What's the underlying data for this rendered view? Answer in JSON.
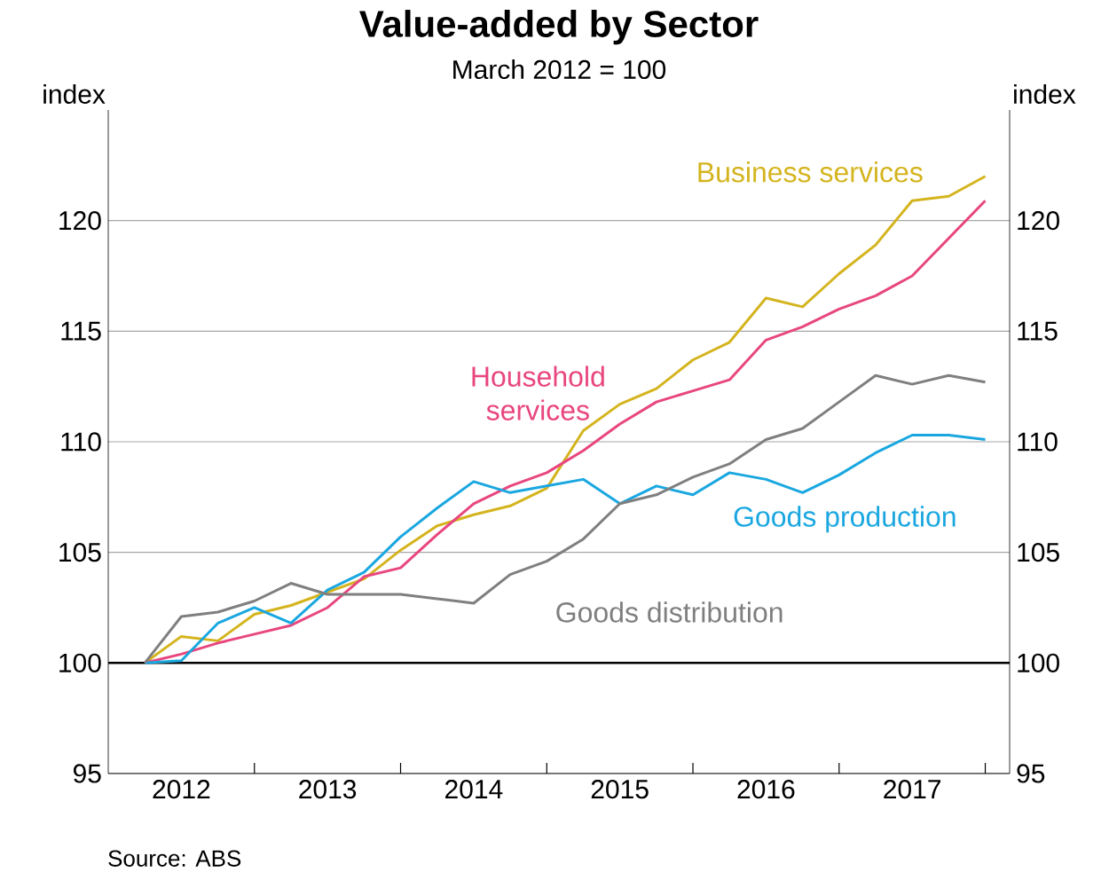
{
  "chart_data": {
    "type": "line",
    "title": "Value-added by Sector",
    "subtitle": "March 2012 = 100",
    "ylabel": "index",
    "y2label": "index",
    "annotations": [
      "Source:   ABS"
    ],
    "x": [
      "2012-03",
      "2012-06",
      "2012-09",
      "2012-12",
      "2013-03",
      "2013-06",
      "2013-09",
      "2013-12",
      "2014-03",
      "2014-06",
      "2014-09",
      "2014-12",
      "2015-03",
      "2015-06",
      "2015-09",
      "2015-12",
      "2016-03",
      "2016-06",
      "2016-09",
      "2016-12",
      "2017-03",
      "2017-06",
      "2017-09",
      "2017-12"
    ],
    "series": [
      {
        "name": "Business services",
        "color": "#d4b41e",
        "values": [
          100,
          101.2,
          101.0,
          102.2,
          102.6,
          103.2,
          103.8,
          105.1,
          106.2,
          106.7,
          107.1,
          107.9,
          110.5,
          111.7,
          112.4,
          113.7,
          114.5,
          116.5,
          116.1,
          117.6,
          118.9,
          120.9,
          121.1,
          122.0
        ]
      },
      {
        "name": "Household services",
        "color": "#e8467f",
        "values": [
          100,
          100.4,
          100.9,
          101.3,
          101.7,
          102.5,
          103.9,
          104.3,
          105.8,
          107.2,
          108.0,
          108.6,
          109.6,
          110.8,
          111.8,
          112.3,
          112.8,
          114.6,
          115.2,
          116.0,
          116.6,
          117.5,
          119.2,
          120.9
        ]
      },
      {
        "name": "Goods production",
        "color": "#1aa7e0",
        "values": [
          100,
          100.1,
          101.8,
          102.5,
          101.8,
          103.3,
          104.1,
          105.7,
          107.0,
          108.2,
          107.7,
          108.0,
          108.3,
          107.2,
          108.0,
          107.6,
          108.6,
          108.3,
          107.7,
          108.5,
          109.5,
          110.3,
          110.3,
          110.1
        ]
      },
      {
        "name": "Goods distribution",
        "color": "#7f7f7f",
        "values": [
          100,
          102.1,
          102.3,
          102.8,
          103.6,
          103.1,
          103.1,
          103.1,
          102.9,
          102.7,
          104.0,
          104.6,
          105.6,
          107.2,
          107.6,
          108.4,
          109.0,
          110.1,
          110.6,
          111.8,
          113.0,
          112.6,
          113.0,
          112.7
        ]
      }
    ],
    "xlim": [
      "2011-12",
      "2018-02"
    ],
    "xticks": [
      {
        "value": "2012-06",
        "label": "2012"
      },
      {
        "value": "2012-12",
        "label": null
      },
      {
        "value": "2013-06",
        "label": "2013"
      },
      {
        "value": "2013-12",
        "label": null
      },
      {
        "value": "2014-06",
        "label": "2014"
      },
      {
        "value": "2014-12",
        "label": null
      },
      {
        "value": "2015-06",
        "label": "2015"
      },
      {
        "value": "2015-12",
        "label": null
      },
      {
        "value": "2016-06",
        "label": "2016"
      },
      {
        "value": "2016-12",
        "label": null
      },
      {
        "value": "2017-06",
        "label": "2017"
      },
      {
        "value": "2017-12",
        "label": null
      }
    ],
    "ylim": [
      95,
      125
    ],
    "yticks": [
      95,
      100,
      105,
      110,
      115,
      120
    ],
    "y2lim": [
      95,
      125
    ],
    "y2ticks": [
      95,
      100,
      105,
      110,
      115,
      120
    ],
    "ref_lines": [
      {
        "axis": "y",
        "value": 100,
        "color": "#000000"
      }
    ],
    "grid": "y"
  }
}
